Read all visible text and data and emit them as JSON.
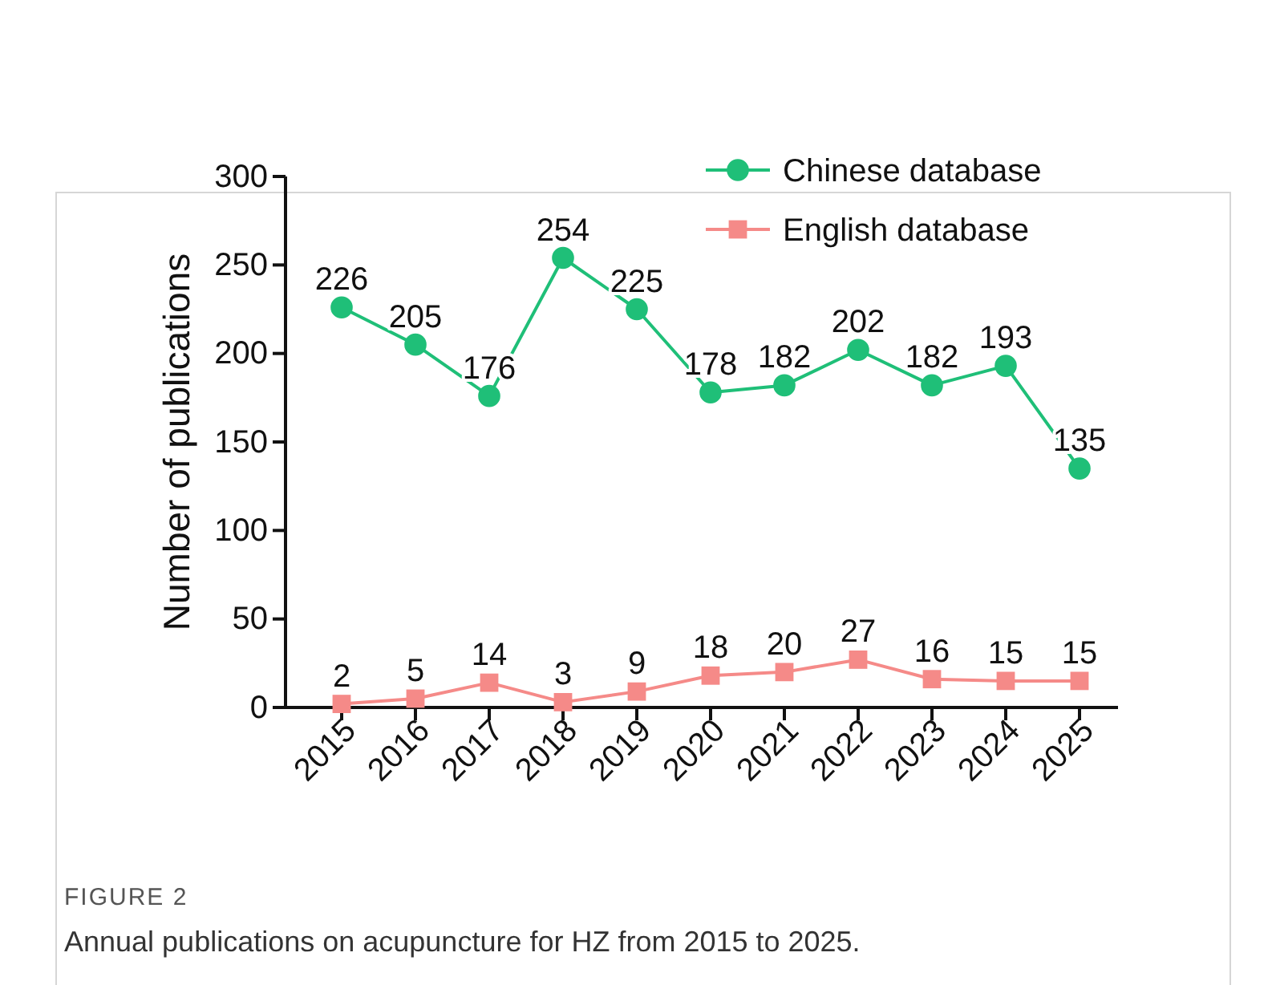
{
  "chart_data": {
    "type": "line",
    "ylabel": "Number of publications",
    "categories": [
      "2015",
      "2016",
      "2017",
      "2018",
      "2019",
      "2020",
      "2021",
      "2022",
      "2023",
      "2024",
      "2025"
    ],
    "series": [
      {
        "name": "Chinese database",
        "color": "#1fbf78",
        "marker": "circle",
        "values": [
          226,
          205,
          176,
          254,
          225,
          178,
          182,
          202,
          182,
          193,
          135
        ]
      },
      {
        "name": "English database",
        "color": "#f58a88",
        "marker": "square",
        "values": [
          2,
          5,
          14,
          3,
          9,
          18,
          20,
          27,
          16,
          15,
          15
        ]
      }
    ],
    "ylim": [
      0,
      300
    ],
    "yticks": [
      0,
      50,
      100,
      150,
      200,
      250,
      300
    ],
    "grid": false,
    "legend": "top right",
    "data_labels": true,
    "annotations": [
      "FIGURE 2",
      "Annual publications on acupuncture for HZ from 2015 to 2025."
    ]
  }
}
